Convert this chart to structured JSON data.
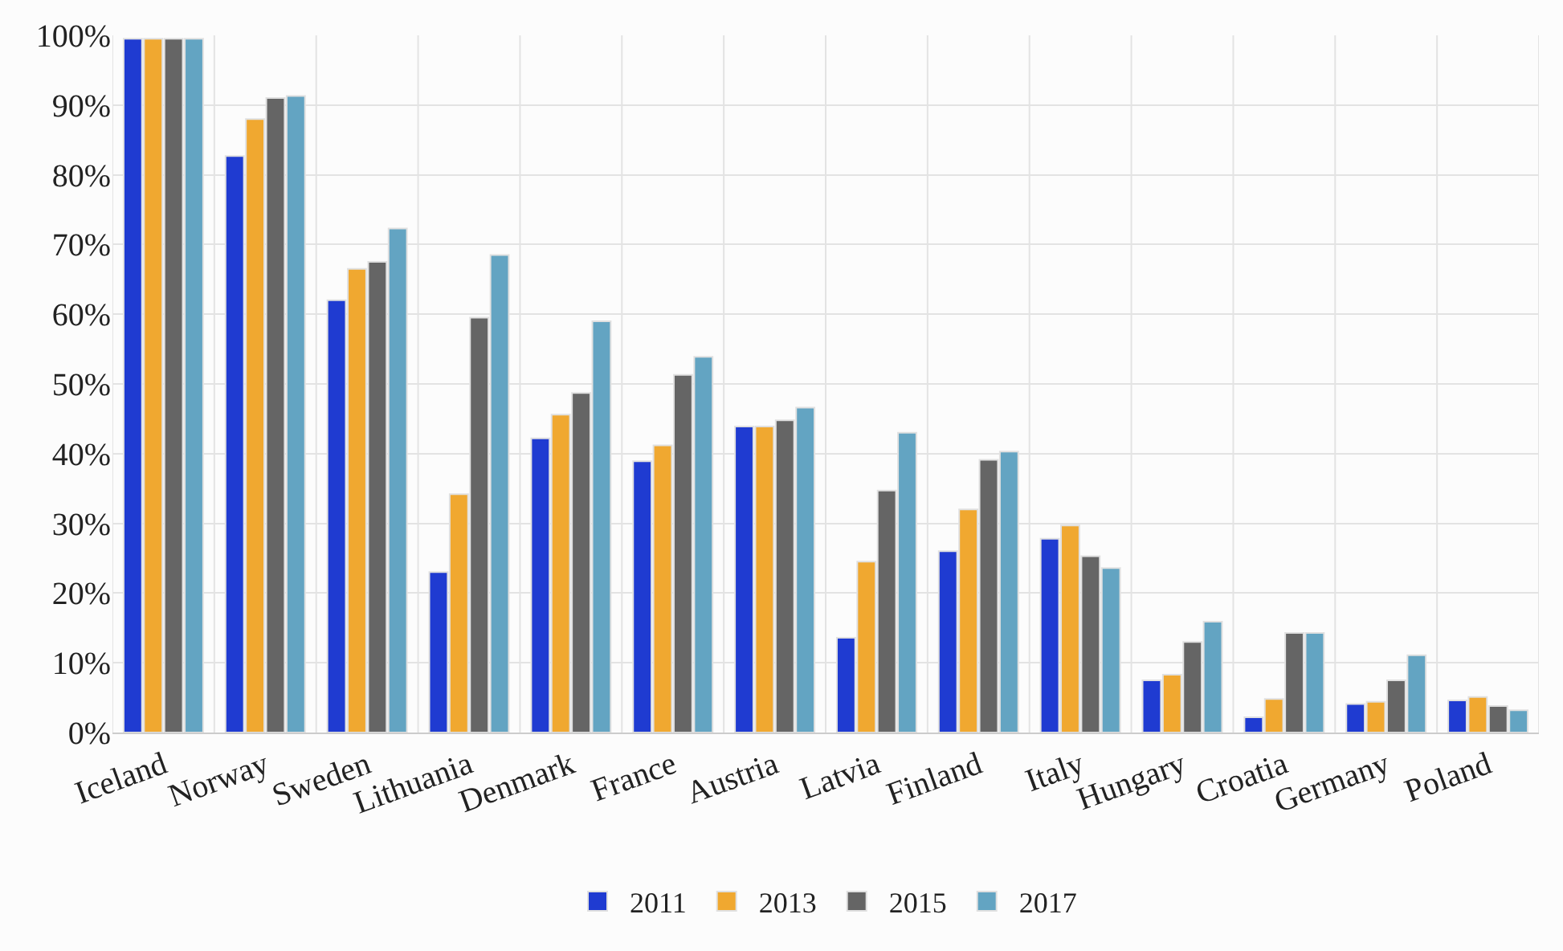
{
  "chart_data": {
    "type": "bar",
    "categories": [
      "Iceland",
      "Norway",
      "Sweden",
      "Lithuania",
      "Denmark",
      "France",
      "Austria",
      "Latvia",
      "Finland",
      "Italy",
      "Hungary",
      "Croatia",
      "Germany",
      "Poland"
    ],
    "series": [
      {
        "name": "2011",
        "color": "#1f3bd1",
        "values": [
          99.5,
          82.7,
          62,
          23,
          42.2,
          38.9,
          43.9,
          13.6,
          26,
          27.8,
          7.5,
          2.2,
          4.1,
          4.6
        ]
      },
      {
        "name": "2013",
        "color": "#f0a830",
        "values": [
          99.5,
          88,
          66.5,
          34.2,
          45.6,
          41.2,
          43.9,
          24.5,
          32,
          29.7,
          8.3,
          4.8,
          4.4,
          5.1
        ]
      },
      {
        "name": "2015",
        "color": "#656565",
        "values": [
          99.5,
          91,
          67.5,
          59.5,
          48.7,
          51.3,
          44.8,
          34.7,
          39.1,
          25.3,
          13,
          14.3,
          7.5,
          3.8
        ]
      },
      {
        "name": "2017",
        "color": "#63a4c2",
        "values": [
          99.5,
          91.3,
          72.3,
          68.5,
          59,
          53.9,
          46.6,
          43,
          40.3,
          23.6,
          15.9,
          14.3,
          11.1,
          3.2
        ]
      }
    ],
    "ylim": [
      0,
      100
    ],
    "yticks": [
      {
        "value": 0,
        "label": "0%"
      },
      {
        "value": 10,
        "label": "10%"
      },
      {
        "value": 20,
        "label": "20%"
      },
      {
        "value": 30,
        "label": "30%"
      },
      {
        "value": 40,
        "label": "40%"
      },
      {
        "value": 50,
        "label": "50%"
      },
      {
        "value": 60,
        "label": "60%"
      },
      {
        "value": 70,
        "label": "70%"
      },
      {
        "value": 80,
        "label": "80%"
      },
      {
        "value": 90,
        "label": "90%"
      },
      {
        "value": 100,
        "label": "100%"
      }
    ],
    "grid": true,
    "legend": "bottom"
  }
}
